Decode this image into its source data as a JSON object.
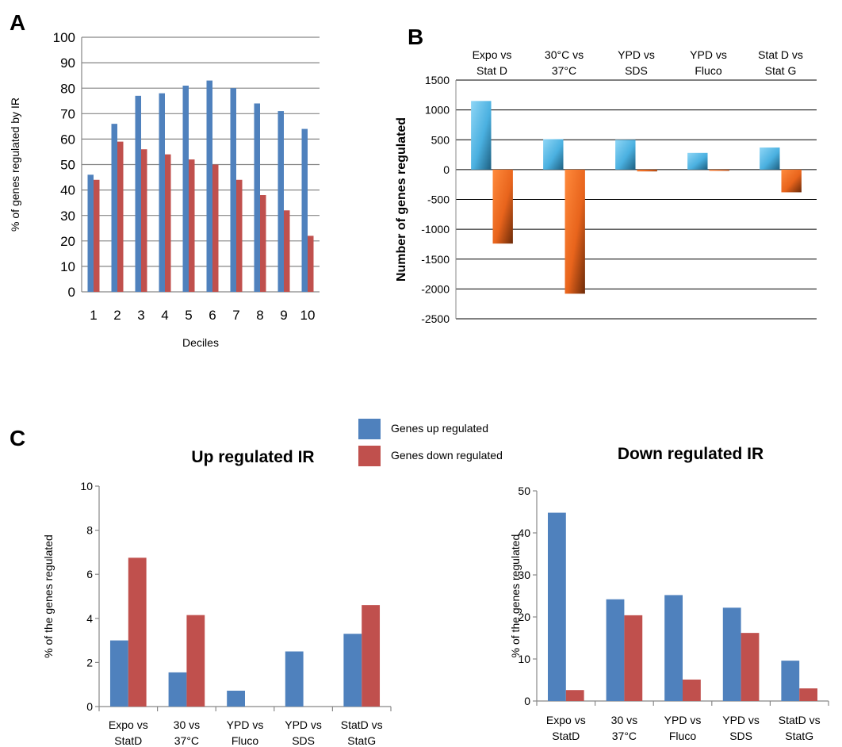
{
  "panels": {
    "a": "A",
    "b": "B",
    "c": "C"
  },
  "legend": {
    "items": [
      {
        "label": "Genes up regulated",
        "color": "#4f81bd"
      },
      {
        "label": "Genes down regulated",
        "color": "#c0504d"
      }
    ]
  },
  "chart_data": [
    {
      "id": "A",
      "type": "bar",
      "title": "",
      "xlabel": "Deciles",
      "ylabel": "% of genes regulated by IR",
      "ylim": [
        0,
        100
      ],
      "yticks": [
        0,
        10,
        20,
        30,
        40,
        50,
        60,
        70,
        80,
        90,
        100
      ],
      "grid": true,
      "categories": [
        "1",
        "2",
        "3",
        "4",
        "5",
        "6",
        "7",
        "8",
        "9",
        "10"
      ],
      "series": [
        {
          "values": [
            46,
            66,
            77,
            78,
            81,
            83,
            80,
            74,
            71,
            64
          ],
          "color": "#4f81bd"
        },
        {
          "values": [
            44,
            59,
            56,
            54,
            52,
            50,
            44,
            38,
            32,
            22
          ],
          "color": "#c0504d"
        }
      ]
    },
    {
      "id": "B",
      "type": "bar",
      "title": "",
      "xlabel": "",
      "ylabel": "Number of genes regulated",
      "ylim": [
        -2500,
        1500
      ],
      "yticks": [
        -2500,
        -2000,
        -1500,
        -1000,
        -500,
        0,
        500,
        1000,
        1500
      ],
      "grid": true,
      "categories": [
        "Expo vs\nStat D",
        "30°C vs\n37°C",
        "YPD vs\nSDS",
        "YPD vs\nFluco",
        "Stat D vs\nStat G"
      ],
      "series": [
        {
          "values": [
            1150,
            510,
            500,
            280,
            370
          ],
          "color": "#4ab0e0"
        },
        {
          "values": [
            -1240,
            -2080,
            -30,
            -20,
            -380
          ],
          "color": "#e8641c"
        }
      ]
    },
    {
      "id": "C1",
      "type": "bar",
      "title": "Up regulated IR",
      "xlabel": "",
      "ylabel": "% of the genes regulated",
      "ylim": [
        0,
        10
      ],
      "yticks": [
        0,
        2,
        4,
        6,
        8,
        10
      ],
      "grid": false,
      "categories": [
        "Expo vs\nStatD",
        "30 vs\n37°C",
        "YPD vs\nFluco",
        "YPD vs\nSDS",
        "StatD vs\nStatG"
      ],
      "series": [
        {
          "name": "Genes up regulated",
          "values": [
            3.0,
            1.55,
            0.72,
            2.5,
            3.3
          ],
          "color": "#4f81bd"
        },
        {
          "name": "Genes down regulated",
          "values": [
            6.75,
            4.15,
            0,
            0,
            4.6
          ],
          "color": "#c0504d"
        }
      ]
    },
    {
      "id": "C2",
      "type": "bar",
      "title": "Down regulated IR",
      "xlabel": "",
      "ylabel": "% of the genes regulated",
      "ylim": [
        0,
        50
      ],
      "yticks": [
        0,
        10,
        20,
        30,
        40,
        50
      ],
      "grid": false,
      "categories": [
        "Expo vs\nStatD",
        "30 vs\n37°C",
        "YPD vs\nFluco",
        "YPD vs\nSDS",
        "StatD vs\nStatG"
      ],
      "series": [
        {
          "name": "Genes up regulated",
          "values": [
            44.8,
            24.2,
            25.2,
            22.2,
            9.6
          ],
          "color": "#4f81bd"
        },
        {
          "name": "Genes down regulated",
          "values": [
            2.6,
            20.4,
            5.1,
            16.2,
            3.0
          ],
          "color": "#c0504d"
        }
      ]
    }
  ]
}
